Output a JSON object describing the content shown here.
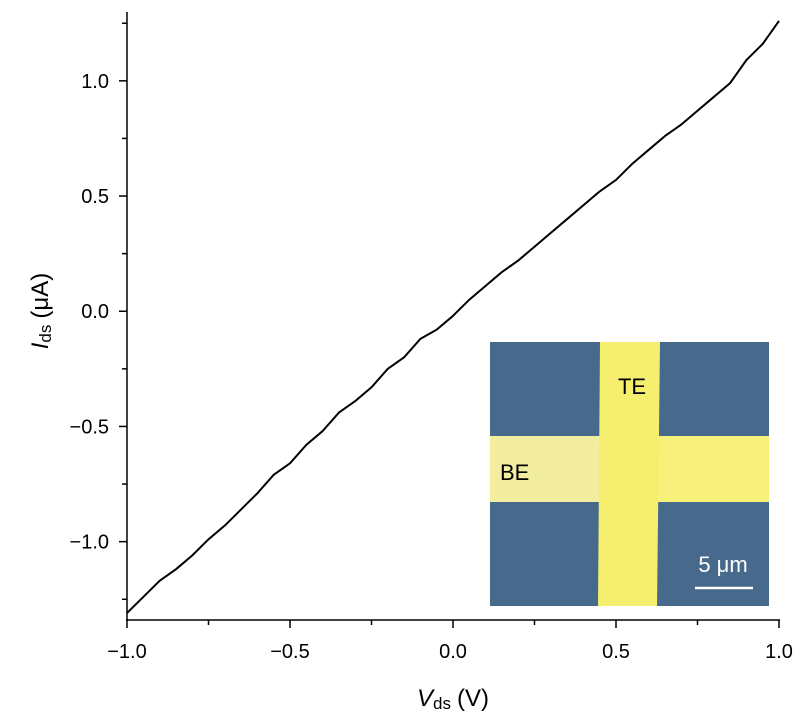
{
  "chart_data": {
    "type": "line",
    "xlabel": {
      "symbol": "V",
      "subscript": "ds",
      "unit": "(V)"
    },
    "ylabel": {
      "symbol": "I",
      "subscript": "ds",
      "unit": "(μA)"
    },
    "x": [
      -1,
      -0.95,
      -0.9,
      -0.85,
      -0.8,
      -0.75,
      -0.7,
      -0.65,
      -0.6,
      -0.55,
      -0.5,
      -0.45,
      -0.4,
      -0.35,
      -0.3,
      -0.25,
      -0.2,
      -0.15,
      -0.1,
      -0.05,
      0,
      0.05,
      0.1,
      0.15,
      0.2,
      0.25,
      0.3,
      0.35,
      0.4,
      0.45,
      0.5,
      0.55,
      0.6,
      0.65,
      0.7,
      0.75,
      0.8,
      0.85,
      0.9,
      0.95,
      1
    ],
    "values": [
      -1.31,
      -1.24,
      -1.17,
      -1.12,
      -1.06,
      -0.99,
      -0.93,
      -0.86,
      -0.79,
      -0.71,
      -0.66,
      -0.58,
      -0.52,
      -0.44,
      -0.39,
      -0.33,
      -0.25,
      -0.2,
      -0.12,
      -0.08,
      -0.02,
      0.05,
      0.11,
      0.17,
      0.22,
      0.28,
      0.34,
      0.4,
      0.46,
      0.52,
      0.57,
      0.64,
      0.7,
      0.76,
      0.81,
      0.87,
      0.93,
      0.99,
      1.09,
      1.16,
      1.26
    ],
    "color": "#000000",
    "xlim": [
      -1,
      1
    ],
    "ylim": [
      -1.34,
      1.29
    ],
    "xticks": [
      {
        "value": -1,
        "label": "−1.0"
      },
      {
        "value": -0.5,
        "label": "−0.5"
      },
      {
        "value": 0,
        "label": "0.0"
      },
      0.5,
      {
        "value": 1,
        "label": "1.0"
      }
    ],
    "yticks": [
      {
        "value": -1,
        "label": "−1.0"
      },
      {
        "value": -0.5,
        "label": "−0.5"
      },
      {
        "value": 0,
        "label": "0.0"
      },
      0.5,
      {
        "value": 1,
        "label": "1.0"
      }
    ],
    "xminorticks": [
      -0.75,
      -0.25,
      0.25,
      0.75
    ],
    "yminorticks": [
      -1.25,
      -0.75,
      -0.25,
      0.25,
      0.75,
      1.25
    ],
    "inset": {
      "top_label": "TE",
      "left_label": "BE",
      "scale_bar": "5 μm"
    }
  }
}
